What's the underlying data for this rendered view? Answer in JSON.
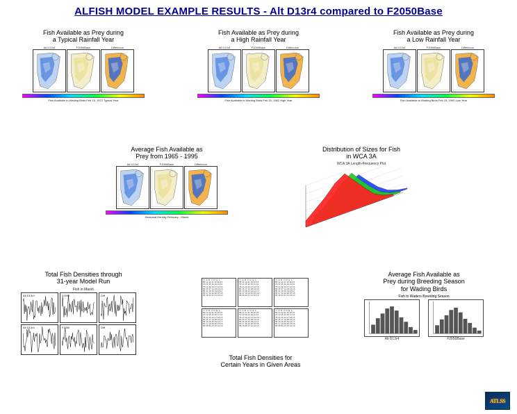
{
  "title": "ALFISH MODEL EXAMPLE RESULTS - Alt D13r4 compared to F2050Base",
  "captions": {
    "typical": "Fish Available as Prey during\na Typical Rainfall Year",
    "high": "Fish Available as Prey during\na High Rainfall Year",
    "low": "Fish Available as Prey during\na Low Rainfall Year",
    "avg6595": "Average Fish Available as\nPrey from 1965 - 1995",
    "sizes3d": "Distribution of Sizes for Fish\nin WCA 3A",
    "ts31": "Total Fish Densities through\n31-year Model Run",
    "tableCap": "Total Fish Densities for\nCertain Years in Given Areas",
    "breeding": "Average Fish Available as\nPrey during Breeding Season\nfor Wading Birds"
  },
  "mapLabels": [
    "Alt D13r4",
    "F2050Base",
    "Difference"
  ],
  "row1_footers": {
    "typical": "Fish Available to Wading Birds Feb 15, 1972 Typical Year",
    "high": "Fish Available to Wading Birds Feb 15, 1982 High Year",
    "low": "Fish Available to Wading Birds Feb 15, 1990 Low Year"
  },
  "avgFooter": "Seasonal Density February - March",
  "tsHeader": "Fish in Marsh",
  "tsCells": [
    "Alt D13r4",
    "F2050",
    "Diff",
    "Alt D13r4",
    "F2050",
    "Diff"
  ],
  "plot3d": {
    "header": "WCA 3A Length-Frequency Plot",
    "colors": [
      "#ff2222",
      "#22cc22",
      "#2244ff"
    ],
    "series": [
      [
        0.15,
        0.35,
        0.55,
        0.8,
        0.95,
        0.7,
        0.45,
        0.22,
        0.1,
        0.04
      ],
      [
        0.1,
        0.28,
        0.48,
        0.72,
        0.88,
        0.62,
        0.38,
        0.18,
        0.08,
        0.03
      ],
      [
        0.06,
        0.2,
        0.38,
        0.6,
        0.76,
        0.52,
        0.3,
        0.14,
        0.06,
        0.02
      ]
    ]
  },
  "barPanel": {
    "header": "Fish to Waders Breeding Season",
    "left": {
      "label": "Alt D13r4",
      "vals": [
        30,
        52,
        68,
        85,
        92,
        78,
        55,
        40,
        22,
        12
      ]
    },
    "right": {
      "label": "F2050Base",
      "vals": [
        28,
        48,
        62,
        80,
        88,
        72,
        50,
        36,
        20,
        10
      ]
    }
  },
  "tableFill": "Yr  A  B  C  D  E  F\n65 12 14 11 15 10 13\n70 13 15 12 16 11 14\n75 14 16 13 17 12 15\n80 15 17 14 18 13 16\n85 16 18 15 19 14 17\n90 17 19 16 20 15 18\n95 18 20 17 21 16 19",
  "logo": "ATLSS",
  "colors": {
    "title": "#000099",
    "waterBlue": "#5a8adf",
    "waterLight": "#bcd4f2",
    "landTan": "#eadf9a",
    "diffOrange": "#f2b44a",
    "diffBlue": "#3a6ad0"
  }
}
